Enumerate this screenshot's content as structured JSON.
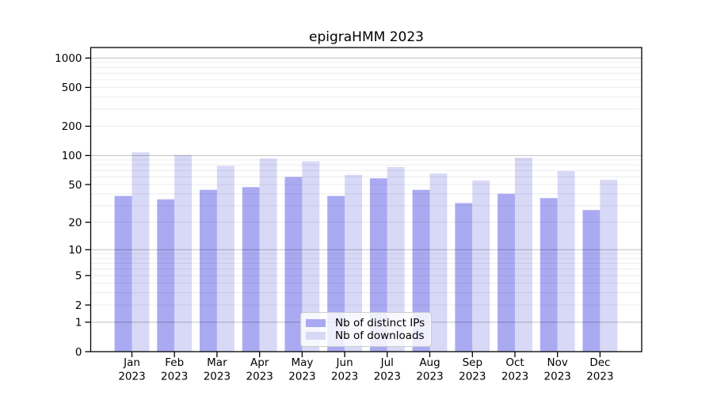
{
  "chart_data": {
    "type": "bar",
    "title": "epigraHMM 2023",
    "categories": [
      "Jan",
      "Feb",
      "Mar",
      "Apr",
      "May",
      "Jun",
      "Jul",
      "Aug",
      "Sep",
      "Oct",
      "Nov",
      "Dec"
    ],
    "x_tick_year": "2023",
    "series": [
      {
        "name": "Nb of distinct IPs",
        "color": "#aaaaf2",
        "values": [
          38,
          35,
          44,
          47,
          60,
          38,
          58,
          44,
          32,
          40,
          36,
          27
        ]
      },
      {
        "name": "Nb of downloads",
        "color": "#d8d8f7",
        "values": [
          108,
          101,
          78,
          93,
          87,
          63,
          76,
          65,
          55,
          95,
          69,
          56
        ]
      }
    ],
    "y_ticks": [
      1000,
      500,
      200,
      100,
      50,
      20,
      10,
      5,
      2,
      1,
      0
    ],
    "y_scale": "log1p",
    "ylim": [
      0,
      1300
    ],
    "grid": "horizontal, minor log divisions, drawn over bars",
    "legend_position": "inside lower-center",
    "colors": {
      "axis": "#000000",
      "major_gridline": "rgba(0,0,0,0.22)",
      "minor_gridline": "rgba(0,0,0,0.075)",
      "background": "#ffffff"
    }
  }
}
